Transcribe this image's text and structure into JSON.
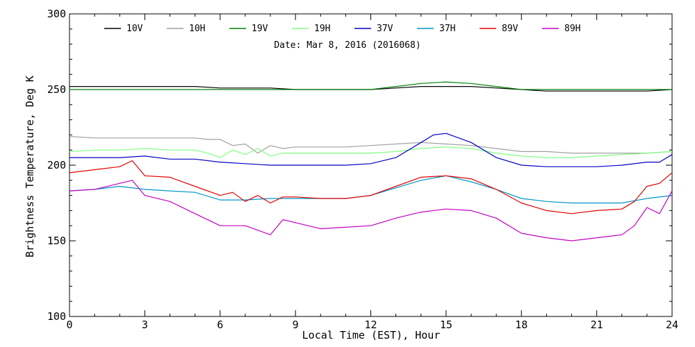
{
  "chart_data": {
    "type": "line",
    "title": "",
    "subtitle": "Date: Mar  8, 2016 (2016068)",
    "xlabel": "Local Time (EST), Hour",
    "ylabel": "Brightness Temperature, Deg K",
    "xlim": [
      0,
      24
    ],
    "ylim": [
      100,
      300
    ],
    "xticks": [
      "0",
      "3",
      "6",
      "9",
      "12",
      "15",
      "18",
      "21",
      "24"
    ],
    "yticks": [
      "100",
      "150",
      "200",
      "250",
      "300"
    ],
    "grid": false,
    "legend_position": "top",
    "series": [
      {
        "name": "10V",
        "color": "#000000",
        "x": [
          0,
          1,
          2,
          3,
          4,
          5,
          6,
          7,
          8,
          9,
          10,
          11,
          12,
          13,
          14,
          15,
          16,
          17,
          18,
          19,
          20,
          21,
          22,
          23,
          24
        ],
        "values": [
          252,
          252,
          252,
          252,
          252,
          252,
          251,
          251,
          251,
          250,
          250,
          250,
          250,
          251,
          252,
          252,
          252,
          251,
          250,
          249,
          249,
          249,
          249,
          249,
          250
        ]
      },
      {
        "name": "10H",
        "color": "#a0a0a0",
        "x": [
          0,
          1,
          2,
          3,
          4,
          5,
          5.5,
          6,
          6.5,
          7,
          7.5,
          8,
          8.5,
          9,
          10,
          11,
          12,
          13,
          14,
          15,
          16,
          17,
          18,
          19,
          20,
          21,
          22,
          23,
          24
        ],
        "values": [
          219,
          218,
          218,
          218,
          218,
          218,
          217,
          217,
          213,
          214,
          208,
          213,
          211,
          212,
          212,
          212,
          213,
          214,
          215,
          214,
          213,
          211,
          209,
          209,
          208,
          208,
          208,
          208,
          209
        ]
      },
      {
        "name": "19V",
        "color": "#008000",
        "x": [
          0,
          1,
          2,
          3,
          4,
          5,
          6,
          7,
          8,
          9,
          10,
          11,
          12,
          13,
          14,
          15,
          16,
          17,
          18,
          19,
          20,
          21,
          22,
          23,
          24
        ],
        "values": [
          250,
          250,
          250,
          250,
          250,
          250,
          250,
          250,
          250,
          250,
          250,
          250,
          250,
          252,
          254,
          255,
          254,
          252,
          250,
          250,
          250,
          250,
          250,
          250,
          250
        ]
      },
      {
        "name": "19H",
        "color": "#80ff80",
        "x": [
          0,
          1,
          2,
          3,
          4,
          5,
          5.5,
          6,
          6.5,
          7,
          7.5,
          8,
          8.5,
          9,
          10,
          11,
          12,
          13,
          14,
          15,
          16,
          17,
          18,
          19,
          20,
          21,
          22,
          23,
          24
        ],
        "values": [
          209,
          210,
          210,
          211,
          210,
          210,
          208,
          205,
          210,
          207,
          211,
          206,
          208,
          208,
          208,
          208,
          208,
          209,
          211,
          212,
          211,
          208,
          206,
          205,
          205,
          206,
          207,
          208,
          209
        ]
      },
      {
        "name": "37V",
        "color": "#0000c0",
        "x": [
          0,
          1,
          2,
          3,
          4,
          5,
          6,
          7,
          8,
          9,
          10,
          11,
          12,
          13,
          14,
          14.5,
          15,
          16,
          17,
          18,
          19,
          20,
          21,
          22,
          23,
          23.5,
          24
        ],
        "values": [
          205,
          205,
          205,
          206,
          204,
          204,
          202,
          201,
          200,
          200,
          200,
          200,
          201,
          205,
          215,
          220,
          221,
          215,
          205,
          200,
          199,
          199,
          199,
          200,
          202,
          202,
          207
        ]
      },
      {
        "name": "37H",
        "color": "#0096c8",
        "x": [
          0,
          1,
          2,
          3,
          4,
          5,
          6,
          7,
          8,
          9,
          10,
          11,
          12,
          13,
          14,
          15,
          16,
          17,
          18,
          19,
          20,
          21,
          22,
          23,
          24
        ],
        "values": [
          183,
          184,
          186,
          184,
          183,
          182,
          177,
          177,
          178,
          178,
          178,
          178,
          180,
          185,
          190,
          193,
          189,
          184,
          178,
          176,
          175,
          175,
          175,
          178,
          180
        ]
      },
      {
        "name": "89V",
        "color": "#e00000",
        "x": [
          0,
          1,
          2,
          2.5,
          3,
          4,
          5,
          6,
          6.5,
          7,
          7.5,
          8,
          8.5,
          9,
          10,
          11,
          12,
          13,
          14,
          15,
          16,
          17,
          18,
          19,
          20,
          21,
          22,
          22.5,
          23,
          23.5,
          24
        ],
        "values": [
          195,
          197,
          199,
          203,
          193,
          192,
          186,
          180,
          182,
          176,
          180,
          175,
          179,
          179,
          178,
          178,
          180,
          186,
          192,
          193,
          191,
          184,
          175,
          170,
          168,
          170,
          171,
          176,
          186,
          188,
          195
        ]
      },
      {
        "name": "89H",
        "color": "#c000c0",
        "x": [
          0,
          1,
          2,
          2.5,
          3,
          4,
          5,
          6,
          7,
          7.5,
          8,
          8.5,
          9,
          10,
          11,
          12,
          13,
          14,
          15,
          16,
          17,
          18,
          19,
          20,
          21,
          22,
          22.5,
          23,
          23.5,
          24
        ],
        "values": [
          183,
          184,
          188,
          190,
          180,
          176,
          168,
          160,
          160,
          157,
          154,
          164,
          162,
          158,
          159,
          160,
          165,
          169,
          171,
          170,
          165,
          155,
          152,
          150,
          152,
          154,
          160,
          172,
          168,
          183
        ]
      }
    ]
  }
}
